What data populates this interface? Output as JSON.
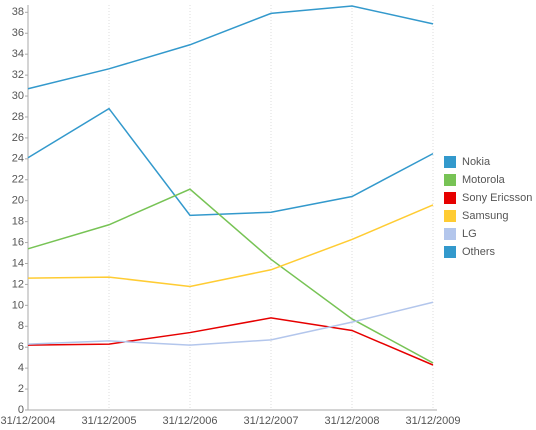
{
  "chart_data": {
    "type": "line",
    "categories": [
      "31/12/2004",
      "31/12/2005",
      "31/12/2006",
      "31/12/2007",
      "31/12/2008",
      "31/12/2009"
    ],
    "series": [
      {
        "name": "Nokia",
        "color": "#3399cc",
        "values": [
          24.1,
          28.8,
          18.6,
          18.9,
          20.4,
          24.5
        ]
      },
      {
        "name": "Motorola",
        "color": "#77c355",
        "values": [
          15.4,
          17.7,
          21.1,
          14.4,
          8.7,
          4.5
        ]
      },
      {
        "name": "Sony Ericsson",
        "color": "#e60000",
        "values": [
          6.2,
          6.3,
          7.4,
          8.8,
          7.6,
          4.3
        ]
      },
      {
        "name": "Samsung",
        "color": "#ffcc33",
        "values": [
          12.6,
          12.7,
          11.8,
          13.4,
          16.3,
          19.6
        ]
      },
      {
        "name": "LG",
        "color": "#b3c6ec",
        "values": [
          6.3,
          6.6,
          6.2,
          6.7,
          8.4,
          10.3
        ]
      },
      {
        "name": "Others",
        "color": "#3399cc",
        "values": [
          30.7,
          32.6,
          34.9,
          37.9,
          38.6,
          36.9
        ]
      }
    ],
    "ylim": [
      0,
      38.7
    ],
    "yticks": [
      0,
      2,
      4,
      6,
      8,
      10,
      12,
      14,
      16,
      18,
      20,
      22,
      24,
      26,
      28,
      30,
      32,
      34,
      36,
      38
    ],
    "grid": true,
    "legend": "right"
  }
}
